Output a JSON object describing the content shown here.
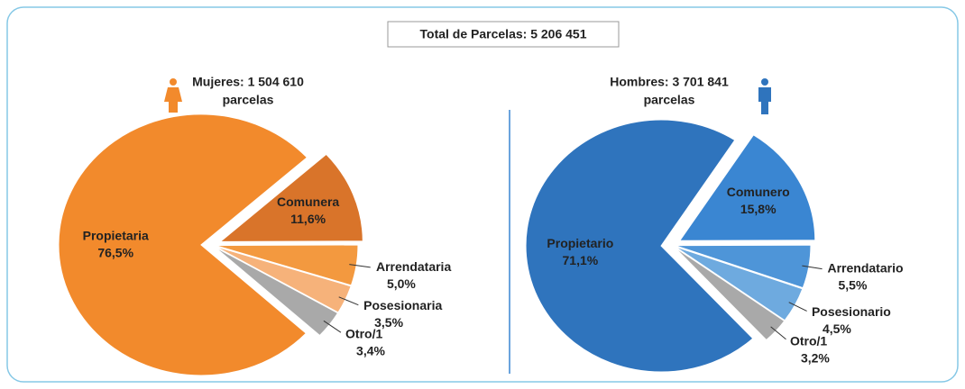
{
  "title": "Total de Parcelas:  5 206 451",
  "chart_data": [
    {
      "type": "pie",
      "title": [
        "Mujeres: 1 504 610",
        "parcelas"
      ],
      "categories": [
        "Comunera",
        "Arrendataria",
        "Posesionaria",
        "Otro/1",
        "Propietaria"
      ],
      "values": [
        11.6,
        5.0,
        3.5,
        3.4,
        76.5
      ],
      "value_labels": [
        "11,6%",
        "5,0%",
        "3,5%",
        "3,4%",
        "76,5%"
      ],
      "colors": [
        "#d9742a",
        "#f3993f",
        "#f6b27a",
        "#a9a9a9",
        "#f28a2c"
      ]
    },
    {
      "type": "pie",
      "title": [
        "Hombres: 3 701 841",
        "parcelas"
      ],
      "categories": [
        "Comunero",
        "Arrendatario",
        "Posesionario",
        "Otro/1",
        "Propietario"
      ],
      "values": [
        15.8,
        5.5,
        4.5,
        3.2,
        71.1
      ],
      "value_labels": [
        "15,8%",
        "5,5%",
        "4,5%",
        "3,2%",
        "71,1%"
      ],
      "colors": [
        "#3a86d2",
        "#4e95d8",
        "#6eaadf",
        "#a9a9a9",
        "#2f74bd"
      ]
    }
  ]
}
